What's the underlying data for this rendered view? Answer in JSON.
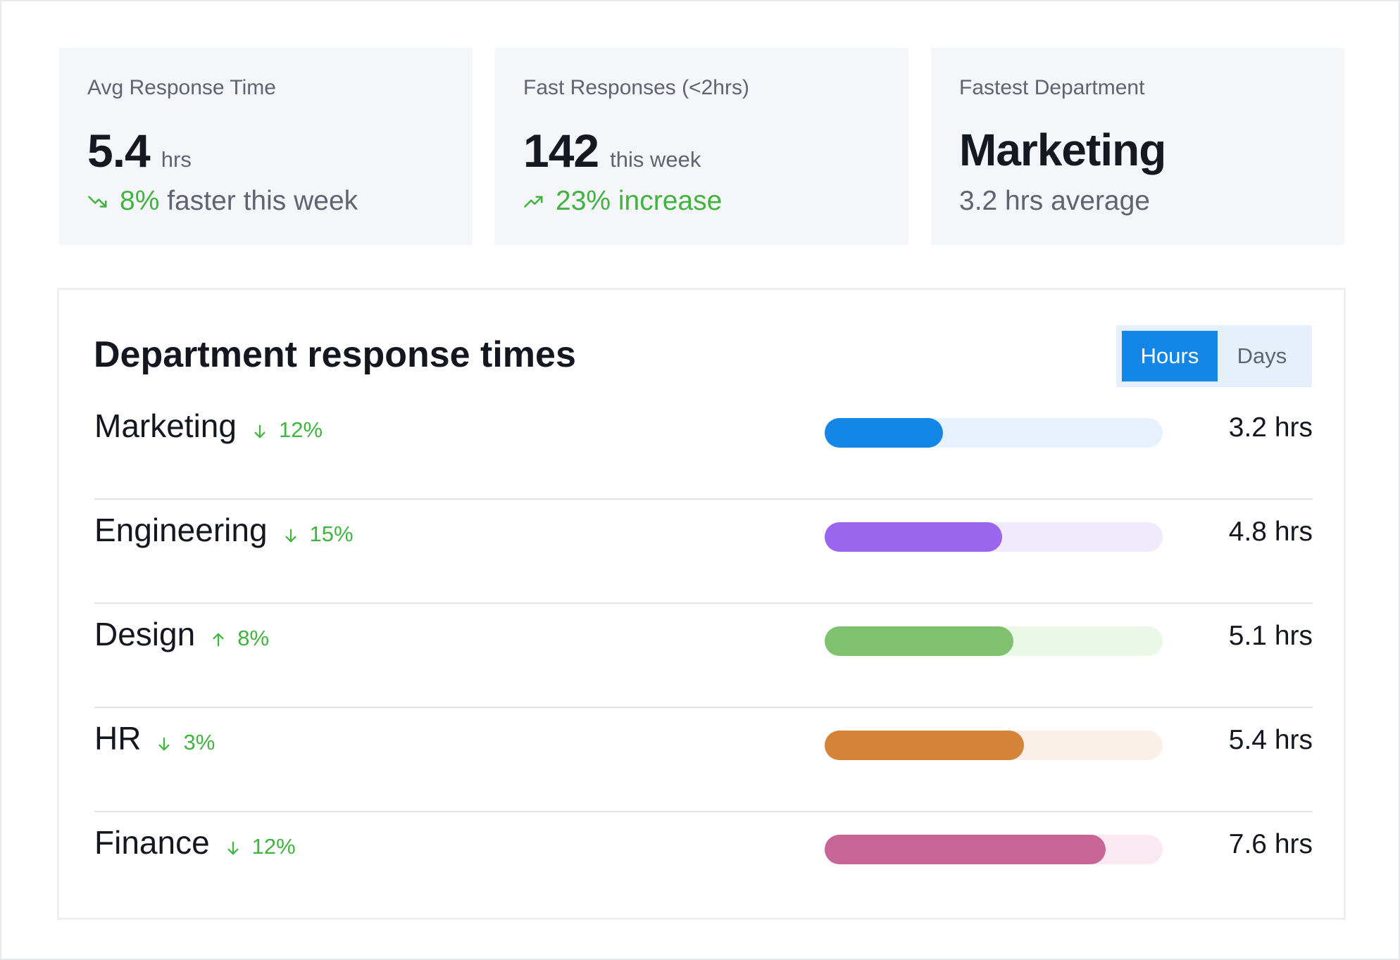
{
  "cards": [
    {
      "label": "Avg Response Time",
      "value": "5.4",
      "unit": "hrs",
      "trend_value": "8%",
      "trend_text": " faster this week",
      "trend_icon": "trending-down-icon",
      "trend_color": "#40b43e"
    },
    {
      "label": "Fast Responses (<2hrs)",
      "value": "142",
      "unit": "this week",
      "trend_value": "23% increase",
      "trend_icon": "trending-up-icon",
      "trend_color": "#40b43e"
    },
    {
      "label": "Fastest Department",
      "value": "Marketing",
      "subtext": "3.2 hrs average"
    }
  ],
  "panel": {
    "title": "Department response times",
    "toggle": {
      "options": [
        "Hours",
        "Days"
      ],
      "selected": "Hours",
      "active_color": "#1487e6"
    },
    "max_hours": 9.15,
    "departments": [
      {
        "name": "Marketing",
        "direction": "down",
        "change": "12%",
        "hours": 3.2,
        "hours_label": "3.2 hrs",
        "color": "#1487e6",
        "track_color": "#e7f1fb"
      },
      {
        "name": "Engineering",
        "direction": "down",
        "change": "15%",
        "hours": 4.8,
        "hours_label": "4.8 hrs",
        "color": "#9b66ee",
        "track_color": "#f0eafb"
      },
      {
        "name": "Design",
        "direction": "up",
        "change": "8%",
        "hours": 5.1,
        "hours_label": "5.1 hrs",
        "color": "#7fc16f",
        "track_color": "#ebf8e8"
      },
      {
        "name": "HR",
        "direction": "down",
        "change": "3%",
        "hours": 5.4,
        "hours_label": "5.4 hrs",
        "color": "#d38438",
        "track_color": "#fbefea"
      },
      {
        "name": "Finance",
        "direction": "down",
        "change": "12%",
        "hours": 7.6,
        "hours_label": "7.6 hrs",
        "color": "#c76597",
        "track_color": "#f9eaf1"
      }
    ]
  }
}
